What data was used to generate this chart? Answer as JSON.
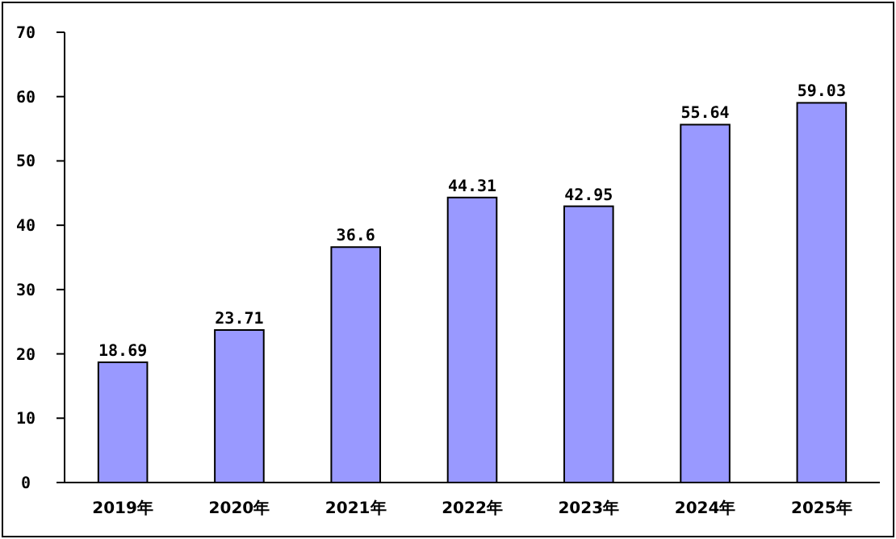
{
  "chart_data": {
    "type": "bar",
    "categories": [
      "2019年",
      "2020年",
      "2021年",
      "2022年",
      "2023年",
      "2024年",
      "2025年"
    ],
    "values": [
      18.69,
      23.71,
      36.6,
      44.31,
      42.95,
      55.64,
      59.03
    ],
    "color": "#9999ff",
    "ylim": [
      0,
      70
    ],
    "yticks": [
      0,
      10,
      20,
      30,
      40,
      50,
      60,
      70
    ],
    "data_labels": true
  }
}
